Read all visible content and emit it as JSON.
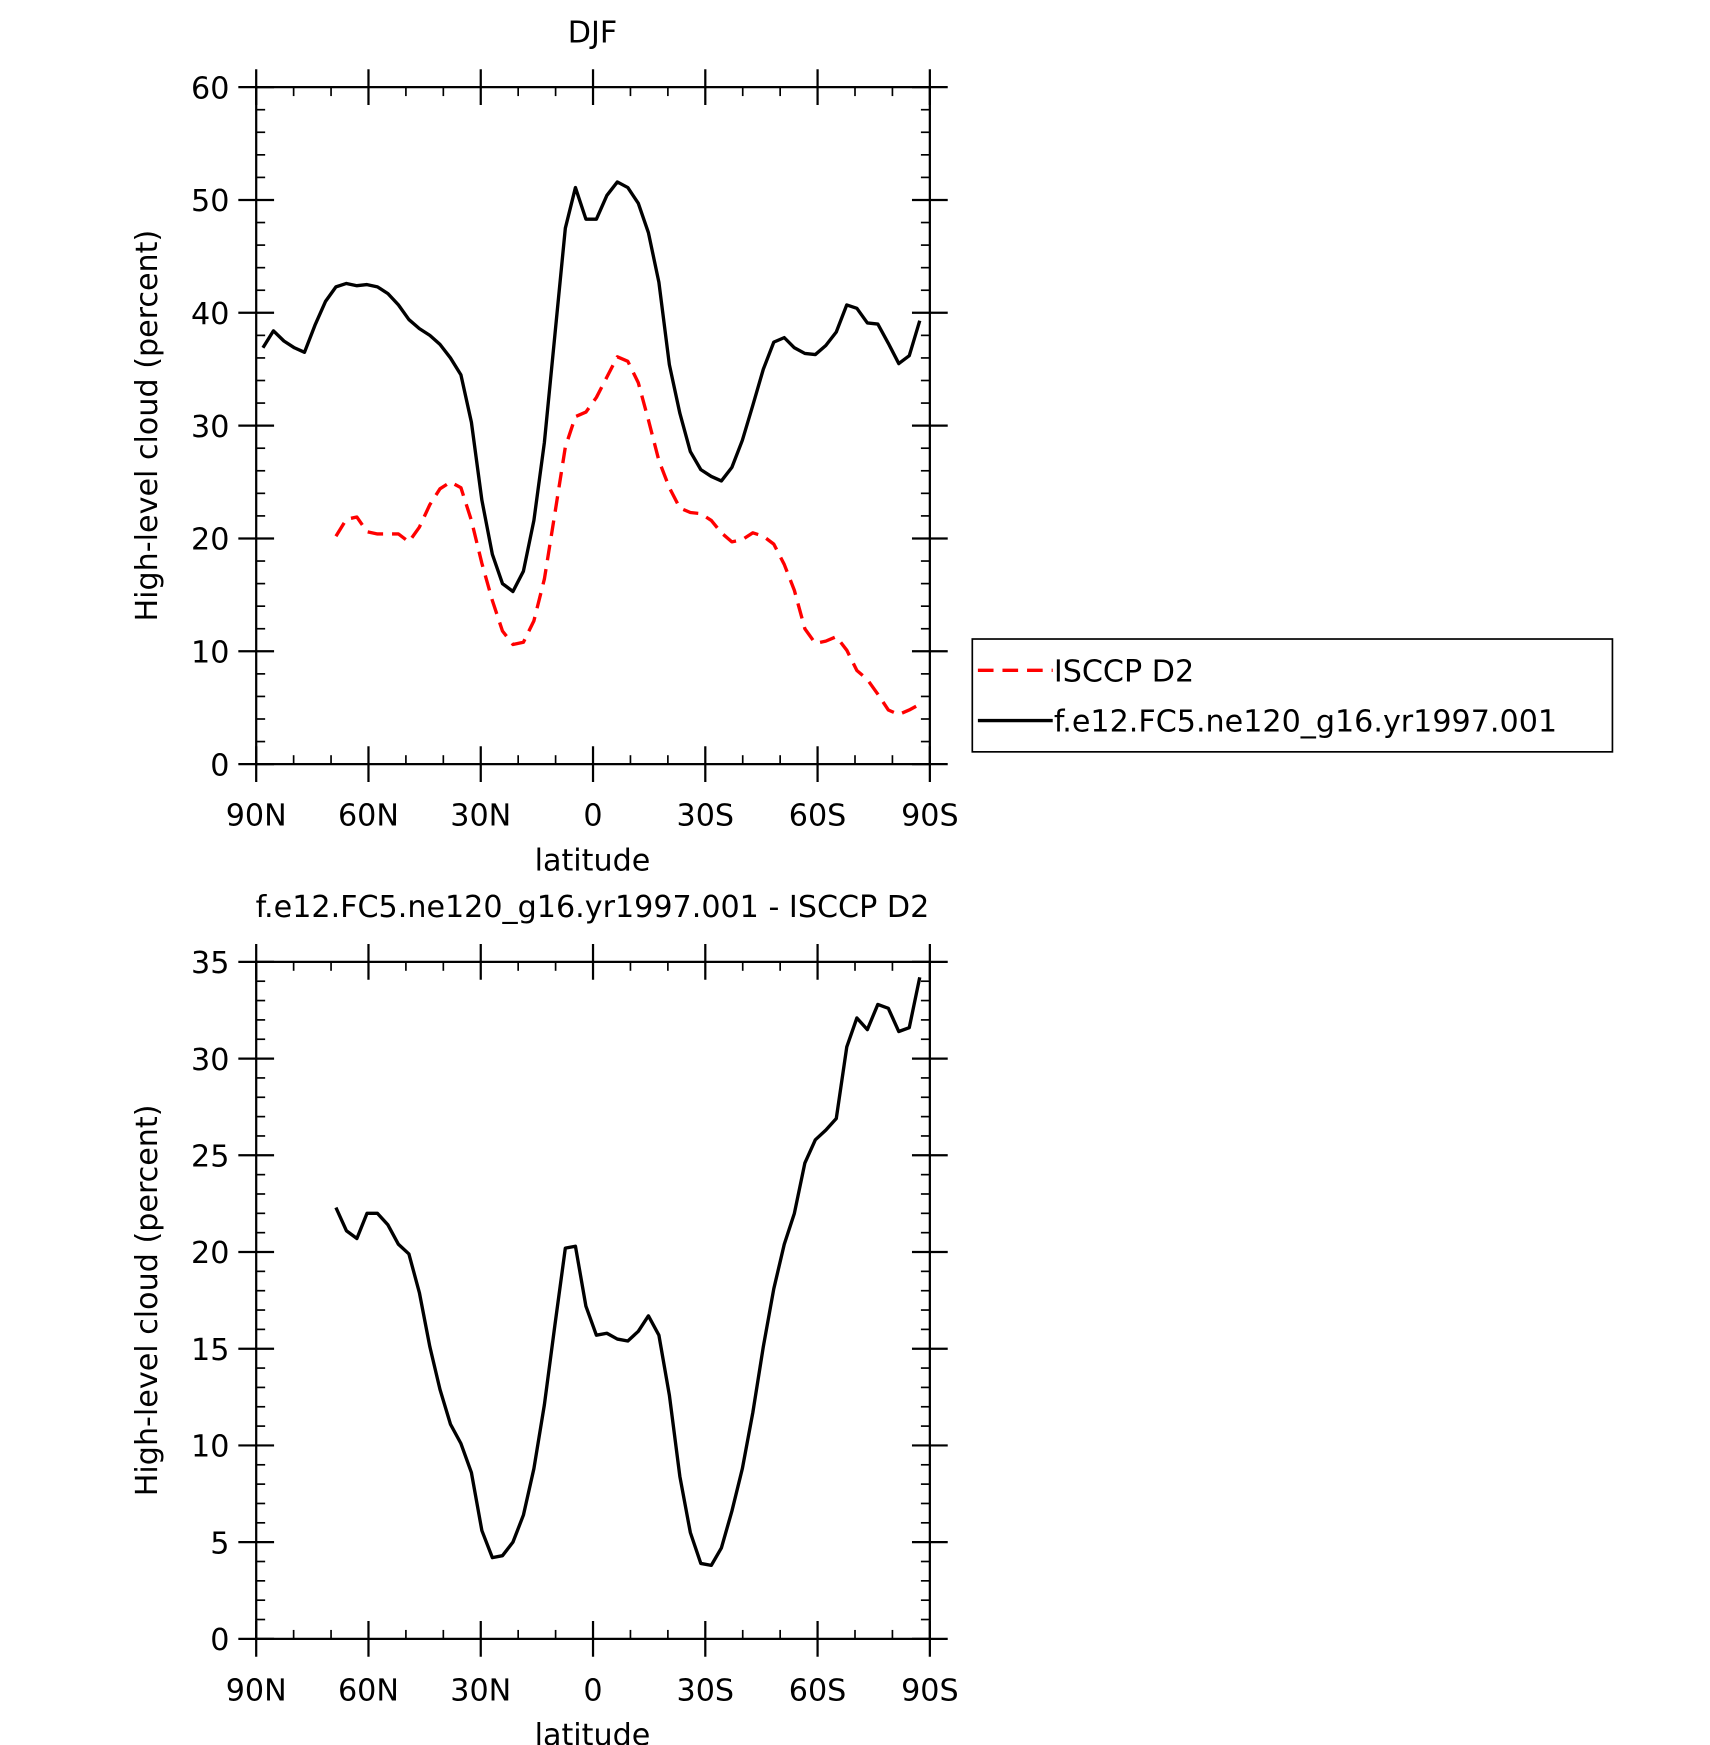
{
  "chart_data": [
    {
      "type": "line",
      "title": "DJF",
      "xlabel": "latitude",
      "ylabel": "High-level cloud (percent)",
      "x": [
        88.2,
        85.4,
        82.6,
        79.8,
        77.1,
        74.3,
        71.5,
        68.7,
        65.9,
        63.1,
        60.4,
        57.6,
        54.8,
        52.0,
        49.2,
        46.4,
        43.6,
        40.9,
        38.1,
        35.3,
        32.5,
        29.7,
        26.9,
        24.2,
        21.4,
        18.6,
        15.8,
        13.0,
        10.2,
        7.4,
        4.7,
        1.9,
        -0.9,
        -3.7,
        -6.5,
        -9.3,
        -12.1,
        -14.8,
        -17.6,
        -20.4,
        -23.2,
        -26.0,
        -28.8,
        -31.6,
        -34.3,
        -37.1,
        -39.9,
        -42.7,
        -45.5,
        -48.3,
        -51.1,
        -53.8,
        -56.6,
        -59.4,
        -62.2,
        -65.0,
        -67.8,
        -70.5,
        -73.3,
        -76.1,
        -78.9,
        -81.7,
        -84.5,
        -87.3
      ],
      "series": [
        {
          "name": "ISCCP D2",
          "color": "#ff0000",
          "style": "dashed",
          "values": [
            null,
            null,
            null,
            null,
            null,
            null,
            null,
            20.2,
            21.7,
            21.9,
            20.6,
            20.4,
            20.4,
            20.4,
            19.7,
            21.0,
            23.0,
            24.4,
            25.0,
            24.5,
            21.6,
            17.8,
            14.5,
            11.8,
            10.6,
            10.8,
            12.7,
            16.4,
            22.2,
            28.1,
            30.8,
            31.2,
            32.5,
            34.3,
            36.1,
            35.7,
            33.8,
            30.5,
            26.9,
            24.5,
            22.7,
            22.3,
            22.2,
            21.6,
            20.5,
            19.7,
            19.9,
            20.5,
            20.2,
            19.5,
            17.7,
            15.4,
            12.0,
            10.7,
            10.9,
            11.3,
            10.1,
            8.3,
            7.5,
            6.2,
            4.8,
            4.4,
            4.8,
            5.3
          ]
        },
        {
          "name": "f.e12.FC5.ne120_g16.yr1997.001",
          "color": "#000000",
          "style": "solid",
          "values": [
            36.9,
            38.4,
            37.5,
            36.9,
            36.5,
            38.9,
            41.0,
            42.3,
            42.6,
            42.4,
            42.5,
            42.3,
            41.7,
            40.7,
            39.4,
            38.6,
            38.0,
            37.2,
            36.0,
            34.5,
            30.3,
            23.4,
            18.6,
            16.0,
            15.3,
            17.1,
            21.6,
            28.5,
            38.0,
            47.5,
            51.1,
            48.3,
            48.3,
            50.4,
            51.6,
            51.1,
            49.7,
            47.1,
            42.7,
            35.4,
            31.1,
            27.7,
            26.1,
            25.5,
            25.1,
            26.3,
            28.7,
            31.8,
            35.0,
            37.4,
            37.8,
            36.9,
            36.4,
            36.3,
            37.1,
            38.3,
            40.7,
            40.4,
            39.1,
            39.0,
            37.3,
            35.5,
            36.2,
            39.3
          ]
        }
      ],
      "xlim": [
        90,
        -90
      ],
      "xticks": [
        {
          "value": 90,
          "label": "90N"
        },
        {
          "value": 60,
          "label": "60N"
        },
        {
          "value": 30,
          "label": "30N"
        },
        0,
        {
          "value": -30,
          "label": "30S"
        },
        {
          "value": -60,
          "label": "60S"
        },
        {
          "value": -90,
          "label": "90S"
        }
      ],
      "ylim": [
        0,
        60
      ],
      "yticks": [
        0,
        10,
        20,
        30,
        40,
        50,
        60
      ],
      "legend": "right"
    },
    {
      "type": "line",
      "title": "f.e12.FC5.ne120_g16.yr1997.001 - ISCCP D2",
      "xlabel": "latitude",
      "ylabel": "High-level cloud (percent)",
      "x": [
        88.2,
        85.4,
        82.6,
        79.8,
        77.1,
        74.3,
        71.5,
        68.7,
        65.9,
        63.1,
        60.4,
        57.6,
        54.8,
        52.0,
        49.2,
        46.4,
        43.6,
        40.9,
        38.1,
        35.3,
        32.5,
        29.7,
        26.9,
        24.2,
        21.4,
        18.6,
        15.8,
        13.0,
        10.2,
        7.4,
        4.7,
        1.9,
        -0.9,
        -3.7,
        -6.5,
        -9.3,
        -12.1,
        -14.8,
        -17.6,
        -20.4,
        -23.2,
        -26.0,
        -28.8,
        -31.6,
        -34.3,
        -37.1,
        -39.9,
        -42.7,
        -45.5,
        -48.3,
        -51.1,
        -53.8,
        -56.6,
        -59.4,
        -62.2,
        -65.0,
        -67.8,
        -70.5,
        -73.3,
        -76.1,
        -78.9,
        -81.7,
        -84.5,
        -87.3
      ],
      "series": [
        {
          "color": "#000000",
          "style": "solid",
          "values": [
            null,
            null,
            null,
            null,
            null,
            null,
            null,
            22.3,
            21.1,
            20.7,
            22.0,
            22.0,
            21.4,
            20.4,
            19.9,
            17.9,
            15.1,
            12.9,
            11.1,
            10.1,
            8.6,
            5.6,
            4.2,
            4.3,
            5.0,
            6.4,
            8.8,
            12.1,
            16.2,
            20.2,
            20.3,
            17.2,
            15.7,
            15.8,
            15.5,
            15.4,
            15.9,
            16.7,
            15.7,
            12.6,
            8.4,
            5.5,
            3.9,
            3.8,
            4.7,
            6.6,
            8.8,
            11.7,
            15.1,
            18.1,
            20.4,
            22.0,
            24.6,
            25.8,
            26.3,
            26.9,
            30.6,
            32.1,
            31.5,
            32.8,
            32.6,
            31.4,
            31.6,
            34.2
          ]
        }
      ],
      "xlim": [
        90,
        -90
      ],
      "xticks": [
        {
          "value": 90,
          "label": "90N"
        },
        {
          "value": 60,
          "label": "60N"
        },
        {
          "value": 30,
          "label": "30N"
        },
        0,
        {
          "value": -30,
          "label": "30S"
        },
        {
          "value": -60,
          "label": "60S"
        },
        {
          "value": -90,
          "label": "90S"
        }
      ],
      "ylim": [
        0,
        35
      ],
      "yticks": [
        0,
        5,
        10,
        15,
        20,
        25,
        30,
        35
      ]
    }
  ]
}
